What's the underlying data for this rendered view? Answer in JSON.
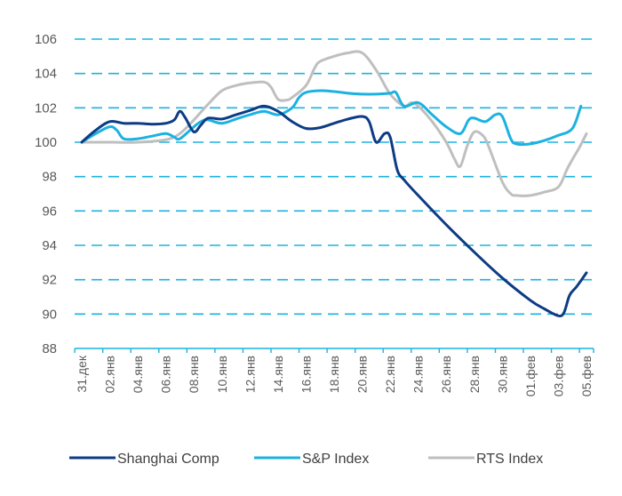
{
  "chart_data": {
    "type": "line",
    "title": "",
    "xlabel": "",
    "ylabel": "",
    "ylim": [
      88,
      106
    ],
    "y_ticks": [
      88,
      90,
      92,
      94,
      96,
      98,
      100,
      102,
      104,
      106
    ],
    "grid": true,
    "legend_position": "bottom",
    "x_tick_labels": [
      "31.дек",
      "02.янв",
      "04.янв",
      "06.янв",
      "08.янв",
      "10.янв",
      "12.янв",
      "14.янв",
      "16.янв",
      "18.янв",
      "20.янв",
      "22.янв",
      "24.янв",
      "26.янв",
      "28.янв",
      "30.янв",
      "01.фев",
      "03.фев",
      "05.фев"
    ],
    "x_index_note": "x values are positions in half-label steps (0 = 31.дек, 2 = 02.янв, ..., 36 = 05.фев)",
    "series": [
      {
        "name": "Shanghai Comp",
        "color": "#0d3c84",
        "points": [
          [
            0,
            100
          ],
          [
            1,
            100.7
          ],
          [
            2,
            101.2
          ],
          [
            3,
            101.1
          ],
          [
            4,
            101.1
          ],
          [
            5,
            101.05
          ],
          [
            6,
            101.1
          ],
          [
            6.6,
            101.3
          ],
          [
            7,
            101.8
          ],
          [
            7.4,
            101.4
          ],
          [
            8,
            100.6
          ],
          [
            8.5,
            101.0
          ],
          [
            9,
            101.4
          ],
          [
            10,
            101.35
          ],
          [
            11,
            101.6
          ],
          [
            12,
            101.85
          ],
          [
            13,
            102.1
          ],
          [
            14,
            101.8
          ],
          [
            15,
            101.2
          ],
          [
            16,
            100.8
          ],
          [
            17,
            100.85
          ],
          [
            18,
            101.1
          ],
          [
            19,
            101.35
          ],
          [
            20,
            101.5
          ],
          [
            20.5,
            101.2
          ],
          [
            21,
            100.0
          ],
          [
            21.6,
            100.5
          ],
          [
            22,
            100.3
          ],
          [
            22.5,
            98.4
          ],
          [
            23,
            97.8
          ],
          [
            24,
            96.9
          ],
          [
            26,
            95.2
          ],
          [
            28,
            93.6
          ],
          [
            30,
            92.1
          ],
          [
            32,
            90.8
          ],
          [
            33,
            90.3
          ],
          [
            34,
            89.9
          ],
          [
            34.4,
            90.1
          ],
          [
            34.8,
            91.1
          ],
          [
            35.3,
            91.6
          ],
          [
            36,
            92.4
          ]
        ]
      },
      {
        "name": "S&P Index",
        "color": "#1cb2e0",
        "points": [
          [
            0,
            100
          ],
          [
            1,
            100.5
          ],
          [
            2,
            100.9
          ],
          [
            2.5,
            100.7
          ],
          [
            3,
            100.2
          ],
          [
            4,
            100.2
          ],
          [
            5,
            100.35
          ],
          [
            6,
            100.5
          ],
          [
            6.6,
            100.3
          ],
          [
            7,
            100.2
          ],
          [
            8,
            100.9
          ],
          [
            8.5,
            101.2
          ],
          [
            9,
            101.3
          ],
          [
            10,
            101.1
          ],
          [
            11,
            101.35
          ],
          [
            12,
            101.6
          ],
          [
            13,
            101.8
          ],
          [
            14,
            101.6
          ],
          [
            15,
            102.0
          ],
          [
            15.5,
            102.6
          ],
          [
            16,
            102.9
          ],
          [
            17,
            103.0
          ],
          [
            18,
            102.95
          ],
          [
            19,
            102.85
          ],
          [
            20,
            102.8
          ],
          [
            21,
            102.8
          ],
          [
            22,
            102.85
          ],
          [
            22.4,
            102.9
          ],
          [
            23,
            102.1
          ],
          [
            24,
            102.3
          ],
          [
            25,
            101.6
          ],
          [
            26,
            100.9
          ],
          [
            27,
            100.5
          ],
          [
            27.6,
            101.3
          ],
          [
            28,
            101.4
          ],
          [
            28.8,
            101.2
          ],
          [
            29.5,
            101.6
          ],
          [
            30,
            101.5
          ],
          [
            30.6,
            100.2
          ],
          [
            31,
            99.9
          ],
          [
            32,
            99.9
          ],
          [
            33,
            100.1
          ],
          [
            34,
            100.4
          ],
          [
            35,
            100.8
          ],
          [
            35.6,
            102.1
          ]
        ]
      },
      {
        "name": "RTS Index",
        "color": "#bfbfbf",
        "points": [
          [
            0,
            100
          ],
          [
            2,
            100.0
          ],
          [
            4,
            100.0
          ],
          [
            6,
            100.15
          ],
          [
            7,
            100.5
          ],
          [
            8,
            101.3
          ],
          [
            9,
            102.2
          ],
          [
            10,
            103.0
          ],
          [
            11,
            103.3
          ],
          [
            12,
            103.45
          ],
          [
            13,
            103.5
          ],
          [
            13.5,
            103.2
          ],
          [
            14,
            102.5
          ],
          [
            14.6,
            102.45
          ],
          [
            15,
            102.6
          ],
          [
            16,
            103.3
          ],
          [
            16.6,
            104.3
          ],
          [
            17,
            104.7
          ],
          [
            18,
            105.0
          ],
          [
            19,
            105.2
          ],
          [
            20,
            105.2
          ],
          [
            21,
            104.2
          ],
          [
            22,
            102.8
          ],
          [
            23,
            102.1
          ],
          [
            23.5,
            102.3
          ],
          [
            24,
            102.1
          ],
          [
            25,
            101.2
          ],
          [
            26,
            100.0
          ],
          [
            26.6,
            99.0
          ],
          [
            27,
            98.6
          ],
          [
            27.5,
            99.8
          ],
          [
            28,
            100.6
          ],
          [
            28.6,
            100.4
          ],
          [
            29,
            99.8
          ],
          [
            30,
            97.7
          ],
          [
            30.6,
            97.0
          ],
          [
            31,
            96.9
          ],
          [
            32,
            96.9
          ],
          [
            33,
            97.1
          ],
          [
            34,
            97.4
          ],
          [
            34.6,
            98.4
          ],
          [
            35,
            99.0
          ],
          [
            35.5,
            99.7
          ],
          [
            36,
            100.5
          ]
        ]
      }
    ]
  }
}
